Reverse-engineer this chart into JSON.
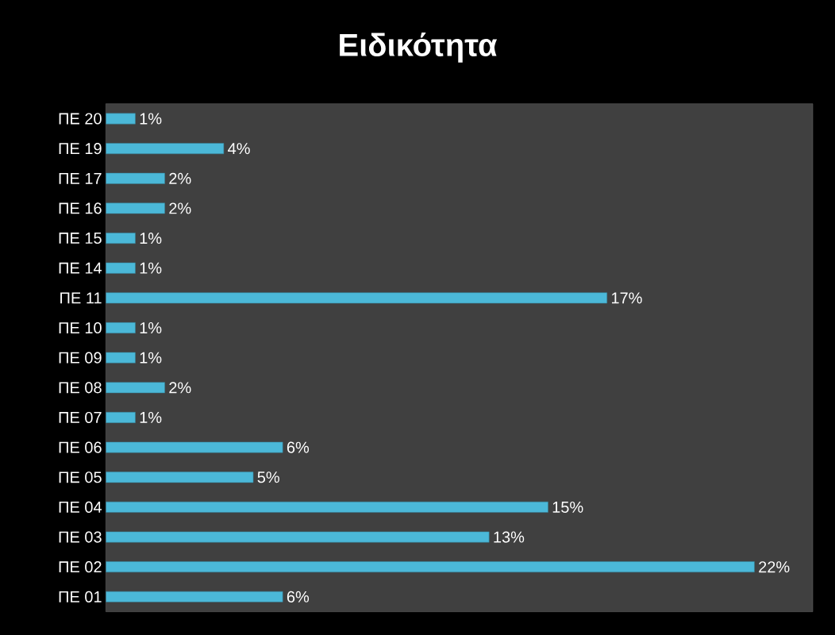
{
  "chart_data": {
    "type": "bar",
    "orientation": "horizontal",
    "title": "Ειδικότητα",
    "categories": [
      "ΠΕ 20",
      "ΠΕ 19",
      "ΠΕ 17",
      "ΠΕ 16",
      "ΠΕ 15",
      "ΠΕ 14",
      "ΠΕ 11",
      "ΠΕ 10",
      "ΠΕ 09",
      "ΠΕ 08",
      "ΠΕ 07",
      "ΠΕ 06",
      "ΠΕ 05",
      "ΠΕ 04",
      "ΠΕ 03",
      "ΠΕ 02",
      "ΠΕ 01"
    ],
    "values": [
      1,
      4,
      2,
      2,
      1,
      1,
      17,
      1,
      1,
      2,
      1,
      6,
      5,
      15,
      13,
      22,
      6
    ],
    "value_labels": [
      "1%",
      "4%",
      "2%",
      "2%",
      "1%",
      "1%",
      "17%",
      "1%",
      "1%",
      "2%",
      "1%",
      "6%",
      "5%",
      "15%",
      "13%",
      "22%",
      "6%"
    ],
    "color": "#4bb8d8"
  }
}
